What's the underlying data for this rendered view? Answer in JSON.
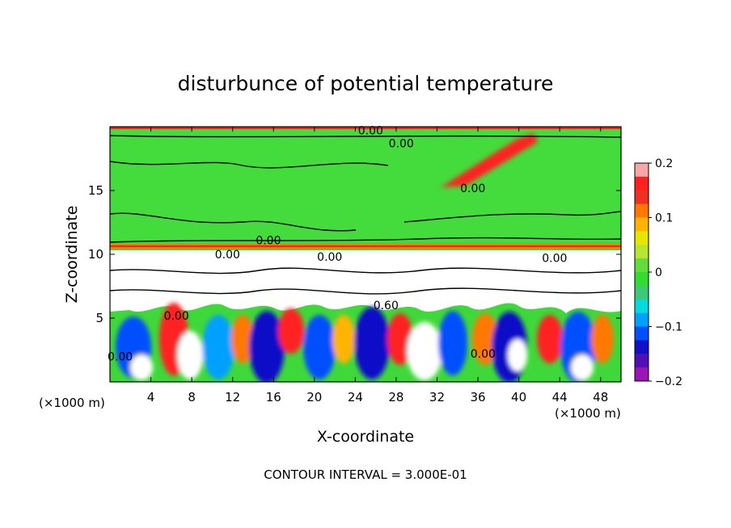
{
  "chart_data": {
    "type": "heatmap",
    "title": "disturbunce of potential temperature",
    "xlabel": "X-coordinate",
    "ylabel": "Z-coordinate",
    "x_unit_left": "(×1000 m)",
    "x_unit_right": "(×1000 m)",
    "xlim": [
      0,
      50
    ],
    "ylim": [
      0,
      20
    ],
    "x_ticks": [
      4,
      8,
      12,
      16,
      20,
      24,
      28,
      32,
      36,
      40,
      44,
      48
    ],
    "y_ticks": [
      5,
      10,
      15
    ],
    "colorbar": {
      "range": [
        -0.2,
        0.2
      ],
      "tick_values": [
        0.2,
        0.1,
        0,
        -0.1,
        -0.2
      ],
      "tick_labels": [
        "0.2",
        "0.1",
        "0",
        "−0.1",
        "−0.2"
      ],
      "colors": [
        "#f7a7a7",
        "#ff2020",
        "#f03020",
        "#ff7800",
        "#ffb400",
        "#e6e600",
        "#b4e632",
        "#64dc3c",
        "#32dc32",
        "#3cc878",
        "#00dcdc",
        "#00a0ff",
        "#0050ff",
        "#1010c8",
        "#5010b4",
        "#9b14b4"
      ]
    },
    "contour_labels": [
      {
        "x": 25.5,
        "z": 19.7,
        "text": "0.00"
      },
      {
        "x": 28.5,
        "z": 18.7,
        "text": "0.00"
      },
      {
        "x": 15.5,
        "z": 11.1,
        "text": "0.00"
      },
      {
        "x": 11.5,
        "z": 10.0,
        "text": "0.00"
      },
      {
        "x": 21.5,
        "z": 9.8,
        "text": "0.00"
      },
      {
        "x": 43.5,
        "z": 9.7,
        "text": "0.00"
      },
      {
        "x": 6.5,
        "z": 5.2,
        "text": "0.00"
      },
      {
        "x": 27.0,
        "z": 6.0,
        "text": "0.60"
      },
      {
        "x": 1.0,
        "z": 2.0,
        "text": "0.00"
      },
      {
        "x": 35.5,
        "z": 15.2,
        "text": "0.00"
      },
      {
        "x": 36.5,
        "z": 2.2,
        "text": "0.00"
      }
    ],
    "annotation": "CONTOUR INTERVAL = 3.000E-01"
  }
}
